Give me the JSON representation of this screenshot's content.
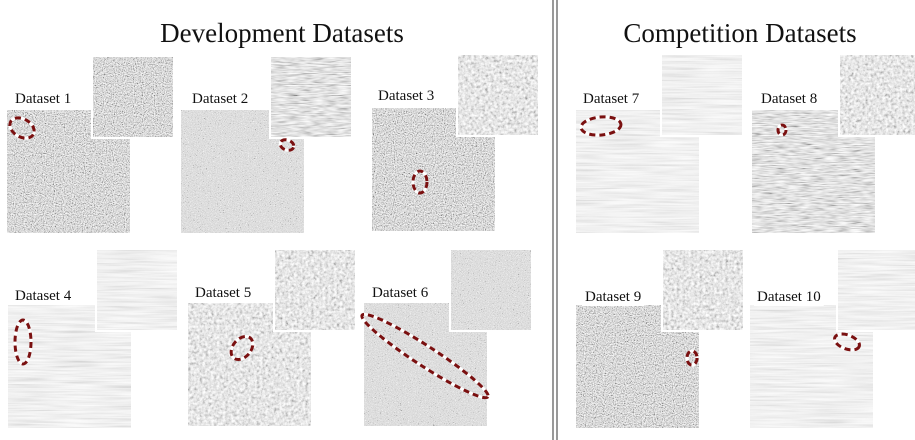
{
  "sections": [
    {
      "title": "Development Datasets",
      "datasets": [
        "Dataset 1",
        "Dataset 2",
        "Dataset 3",
        "Dataset 4",
        "Dataset 5",
        "Dataset 6"
      ]
    },
    {
      "title": "Competition Datasets",
      "datasets": [
        "Dataset 7",
        "Dataset 8",
        "Dataset 9",
        "Dataset 10"
      ]
    }
  ]
}
